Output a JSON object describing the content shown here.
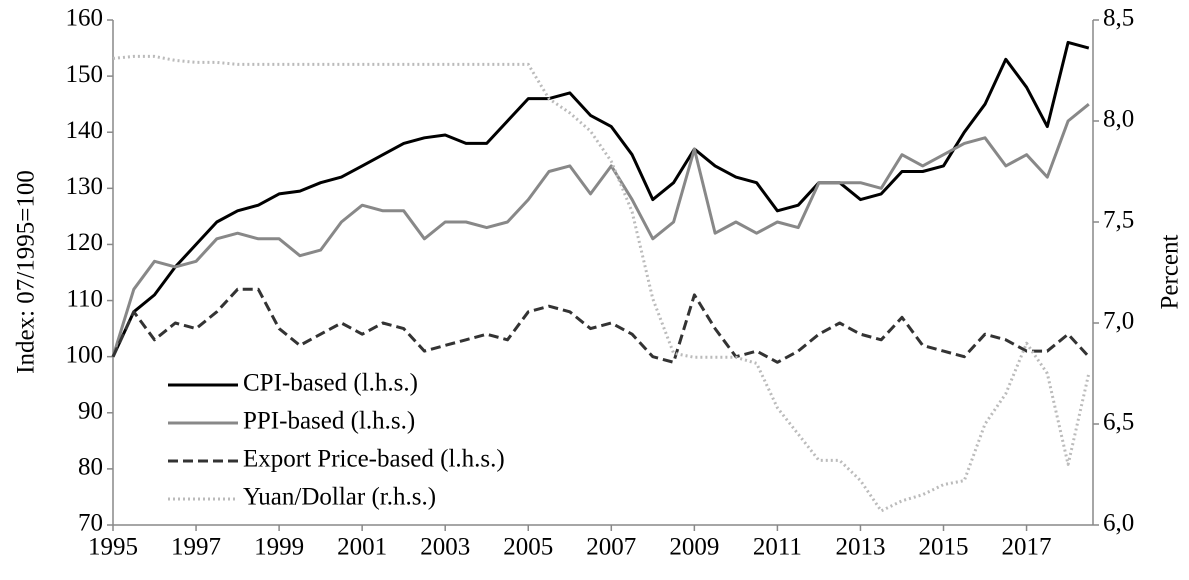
{
  "chart_data": {
    "type": "line",
    "y_label": "Index: 07/1995=100",
    "y2_label": "Percent",
    "x": [
      1995,
      1995.5,
      1996,
      1996.5,
      1997,
      1997.5,
      1998,
      1998.5,
      1999,
      1999.5,
      2000,
      2000.5,
      2001,
      2001.5,
      2002,
      2002.5,
      2003,
      2003.5,
      2004,
      2004.5,
      2005,
      2005.5,
      2006,
      2006.5,
      2007,
      2007.5,
      2008,
      2008.5,
      2009,
      2009.5,
      2010,
      2010.5,
      2011,
      2011.5,
      2012,
      2012.5,
      2013,
      2013.5,
      2014,
      2014.5,
      2015,
      2015.5,
      2016,
      2016.5,
      2017,
      2017.5,
      2018,
      2018.5
    ],
    "xlim": [
      1995,
      2018.6
    ],
    "xticks": [
      1995,
      1997,
      1999,
      2001,
      2003,
      2005,
      2007,
      2009,
      2011,
      2013,
      2015,
      2017
    ],
    "ylim": [
      70,
      160
    ],
    "yticks": [
      70,
      80,
      90,
      100,
      110,
      120,
      130,
      140,
      150,
      160
    ],
    "y2lim": [
      6,
      8.5
    ],
    "y2ticks": [
      {
        "value": 6,
        "label": "6,0"
      },
      {
        "value": 6.5,
        "label": "6,5"
      },
      {
        "value": 7,
        "label": "7,0"
      },
      {
        "value": 7.5,
        "label": "7,5"
      },
      {
        "value": 8,
        "label": "8,0"
      },
      {
        "value": 8.5,
        "label": "8,5"
      }
    ],
    "legend": "lower left",
    "series": [
      {
        "name": "CPI-based (l.h.s.)",
        "color": "#000000",
        "style": "solid",
        "values": [
          100,
          108,
          111,
          116,
          120,
          124,
          126,
          127,
          129,
          129.5,
          131,
          132,
          134,
          136,
          138,
          139,
          139.5,
          138,
          138,
          142,
          146,
          146,
          147,
          143,
          141,
          136,
          128,
          131,
          137,
          134,
          132,
          131,
          126,
          127,
          131,
          131,
          128,
          129,
          133,
          133,
          134,
          140,
          145,
          153,
          148,
          141,
          156,
          155
        ]
      },
      {
        "name": "PPI-based (l.h.s.)",
        "color": "#888888",
        "style": "solid",
        "values": [
          100,
          112,
          117,
          116,
          117,
          121,
          122,
          121,
          121,
          118,
          119,
          124,
          127,
          126,
          126,
          121,
          124,
          124,
          123,
          124,
          128,
          133,
          134,
          129,
          134,
          128,
          121,
          124,
          137,
          122,
          124,
          122,
          124,
          123,
          131,
          131,
          131,
          130,
          136,
          134,
          136,
          138,
          139,
          134,
          136,
          132,
          142,
          145
        ]
      },
      {
        "name": "Export Price-based (l.h.s.)",
        "color": "#333333",
        "style": "dashed",
        "values": [
          100,
          108,
          103,
          106,
          105,
          108,
          112,
          112,
          105,
          102,
          104,
          106,
          104,
          106,
          105,
          101,
          102,
          103,
          104,
          103,
          108,
          109,
          108,
          105,
          106,
          104,
          100,
          99,
          111,
          105,
          100,
          101,
          99,
          101,
          104,
          106,
          104,
          103,
          107,
          102,
          101,
          100,
          104,
          103,
          101,
          101,
          104,
          100
        ]
      },
      {
        "name": "Yuan/Dollar (r.h.s.)",
        "color": "#bbbbbb",
        "style": "dotted",
        "axis": "y2",
        "values": [
          8.31,
          8.32,
          8.32,
          8.3,
          8.29,
          8.29,
          8.28,
          8.28,
          8.28,
          8.28,
          8.28,
          8.28,
          8.28,
          8.28,
          8.28,
          8.28,
          8.28,
          8.28,
          8.28,
          8.28,
          8.28,
          8.11,
          8.04,
          7.95,
          7.8,
          7.55,
          7.12,
          6.85,
          6.83,
          6.83,
          6.83,
          6.8,
          6.58,
          6.45,
          6.32,
          6.32,
          6.22,
          6.07,
          6.12,
          6.15,
          6.2,
          6.22,
          6.5,
          6.65,
          6.9,
          6.75,
          6.3,
          6.75
        ]
      }
    ]
  }
}
